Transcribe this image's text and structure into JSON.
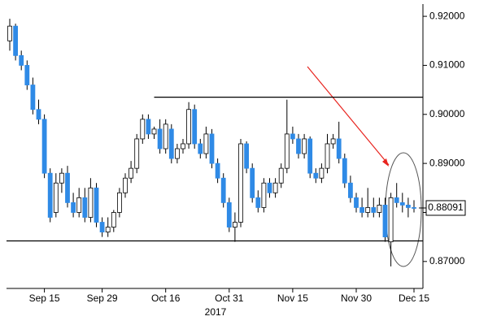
{
  "chart_data": {
    "type": "candlestick",
    "categories": [
      null,
      null,
      null,
      null,
      null,
      null,
      "Sep 15",
      null,
      null,
      null,
      null,
      null,
      null,
      null,
      null,
      null,
      "Sep 29",
      null,
      null,
      null,
      null,
      null,
      null,
      null,
      null,
      null,
      null,
      "Oct 16",
      null,
      null,
      null,
      null,
      null,
      null,
      null,
      null,
      null,
      null,
      "Oct 31",
      null,
      null,
      null,
      null,
      null,
      null,
      null,
      null,
      null,
      null,
      "Nov 15",
      null,
      null,
      null,
      null,
      null,
      null,
      null,
      null,
      null,
      null,
      "Nov 30",
      null,
      null,
      null,
      null,
      null,
      null,
      null,
      null,
      null,
      "Dec 15"
    ],
    "open": [
      0.915,
      0.918,
      0.912,
      0.91,
      0.906,
      0.901,
      0.899,
      0.888,
      0.88,
      0.886,
      0.888,
      0.882,
      0.88,
      0.883,
      0.879,
      0.885,
      0.878,
      0.876,
      0.877,
      0.88,
      0.884,
      0.887,
      0.889,
      0.895,
      0.899,
      0.896,
      0.897,
      0.893,
      0.897,
      0.891,
      0.893,
      0.894,
      0.901,
      0.894,
      0.892,
      0.896,
      0.89,
      0.887,
      0.882,
      0.877,
      0.878,
      0.894,
      0.889,
      0.883,
      0.881,
      0.886,
      0.884,
      0.886,
      0.889,
      0.896,
      0.895,
      0.892,
      0.895,
      0.888,
      0.887,
      0.889,
      0.894,
      0.895,
      0.891,
      0.886,
      0.883,
      0.881,
      0.88,
      0.881,
      0.88,
      0.8815,
      0.874,
      0.883,
      0.882,
      0.8815,
      0.881
    ],
    "high": [
      0.9195,
      0.9185,
      0.913,
      0.911,
      0.9075,
      0.903,
      0.9,
      0.889,
      0.888,
      0.889,
      0.8895,
      0.884,
      0.885,
      0.885,
      0.887,
      0.886,
      0.879,
      0.879,
      0.8805,
      0.885,
      0.888,
      0.8905,
      0.896,
      0.9,
      0.9,
      0.8975,
      0.899,
      0.899,
      0.898,
      0.894,
      0.895,
      0.9025,
      0.902,
      0.895,
      0.8975,
      0.897,
      0.891,
      0.888,
      0.883,
      0.88,
      0.895,
      0.8945,
      0.89,
      0.8845,
      0.887,
      0.887,
      0.887,
      0.89,
      0.903,
      0.8975,
      0.896,
      0.896,
      0.8955,
      0.889,
      0.89,
      0.896,
      0.896,
      0.8985,
      0.892,
      0.8875,
      0.884,
      0.883,
      0.885,
      0.883,
      0.883,
      0.883,
      0.884,
      0.886,
      0.884,
      0.883,
      0.8825
    ],
    "low": [
      0.913,
      0.911,
      0.909,
      0.905,
      0.9,
      0.898,
      0.887,
      0.878,
      0.879,
      0.884,
      0.881,
      0.879,
      0.879,
      0.878,
      0.878,
      0.877,
      0.875,
      0.875,
      0.876,
      0.879,
      0.883,
      0.886,
      0.888,
      0.894,
      0.895,
      0.895,
      0.892,
      0.892,
      0.89,
      0.89,
      0.892,
      0.893,
      0.893,
      0.891,
      0.891,
      0.889,
      0.886,
      0.881,
      0.876,
      0.874,
      0.877,
      0.888,
      0.882,
      0.88,
      0.88,
      0.883,
      0.883,
      0.885,
      0.888,
      0.894,
      0.891,
      0.891,
      0.887,
      0.886,
      0.886,
      0.888,
      0.893,
      0.89,
      0.885,
      0.882,
      0.88,
      0.879,
      0.879,
      0.879,
      0.879,
      0.874,
      0.869,
      0.881,
      0.88,
      0.879,
      0.88
    ],
    "close": [
      0.918,
      0.912,
      0.91,
      0.906,
      0.901,
      0.899,
      0.888,
      0.879,
      0.886,
      0.888,
      0.882,
      0.88,
      0.883,
      0.879,
      0.885,
      0.878,
      0.876,
      0.877,
      0.88,
      0.884,
      0.887,
      0.889,
      0.895,
      0.899,
      0.896,
      0.897,
      0.893,
      0.898,
      0.891,
      0.893,
      0.894,
      0.901,
      0.894,
      0.892,
      0.896,
      0.89,
      0.887,
      0.882,
      0.877,
      0.878,
      0.894,
      0.889,
      0.883,
      0.881,
      0.886,
      0.884,
      0.886,
      0.889,
      0.896,
      0.895,
      0.892,
      0.895,
      0.888,
      0.887,
      0.889,
      0.894,
      0.895,
      0.891,
      0.886,
      0.883,
      0.881,
      0.88,
      0.881,
      0.88,
      0.8815,
      0.875,
      0.883,
      0.882,
      0.8815,
      0.881,
      0.88091
    ],
    "up_color": "#ffffff",
    "down_color": "#2f8ae6",
    "last_price": 0.88091,
    "year_label": "2017",
    "levels": [
      0.9035,
      0.8742
    ],
    "ylim": [
      0.8645,
      0.9225
    ],
    "yticks": [
      {
        "value": 0.87,
        "label": "0.87000"
      },
      {
        "value": 0.88,
        "label": "0.88000"
      },
      {
        "value": 0.89,
        "label": "0.89000"
      },
      {
        "value": 0.9,
        "label": "0.90000"
      },
      {
        "value": 0.91,
        "label": "0.91000"
      },
      {
        "value": 0.92,
        "label": "0.92000"
      }
    ]
  }
}
